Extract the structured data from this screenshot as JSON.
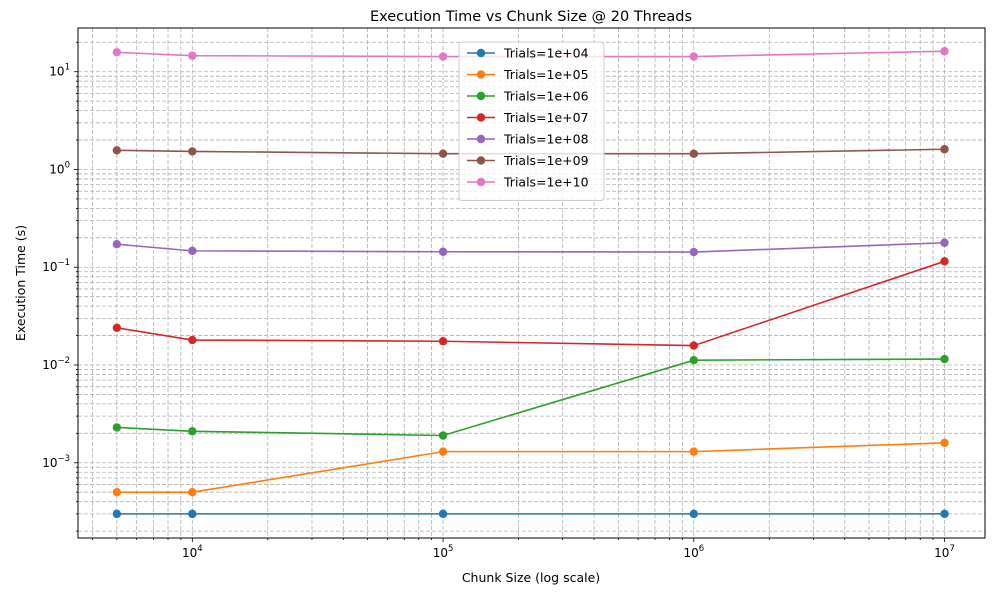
{
  "chart_data": {
    "type": "line",
    "title": "Execution Time vs Chunk Size @ 20 Threads",
    "xlabel": "Chunk Size (log scale)",
    "ylabel": "Execution Time (s)",
    "xscale": "log",
    "yscale": "log",
    "xlim": [
      3500,
      14500000
    ],
    "ylim": [
      0.00017,
      28
    ],
    "grid": "major and minor, dashed",
    "legend_position": "top-center",
    "x_ticks": [
      {
        "value": 10000,
        "base": "10",
        "exp": "4"
      },
      {
        "value": 100000,
        "base": "10",
        "exp": "5"
      },
      {
        "value": 1000000,
        "base": "10",
        "exp": "6"
      },
      {
        "value": 10000000,
        "base": "10",
        "exp": "7"
      }
    ],
    "y_ticks": [
      {
        "value": 0.001,
        "base": "10",
        "exp": "−3"
      },
      {
        "value": 0.01,
        "base": "10",
        "exp": "−2"
      },
      {
        "value": 0.1,
        "base": "10",
        "exp": "−1"
      },
      {
        "value": 1,
        "base": "10",
        "exp": "0"
      },
      {
        "value": 10,
        "base": "10",
        "exp": "1"
      }
    ],
    "x": [
      5000,
      10000,
      100000,
      1000000,
      10000000
    ],
    "series": [
      {
        "name": "Trials=1e+04",
        "color": "#1f77b4",
        "values": [
          0.0003,
          0.0003,
          0.0003,
          0.0003,
          0.0003
        ]
      },
      {
        "name": "Trials=1e+05",
        "color": "#ff7f0e",
        "values": [
          0.0005,
          0.0005,
          0.0013,
          0.0013,
          0.0016
        ]
      },
      {
        "name": "Trials=1e+06",
        "color": "#2ca02c",
        "values": [
          0.0023,
          0.0021,
          0.0019,
          0.0112,
          0.0115
        ]
      },
      {
        "name": "Trials=1e+07",
        "color": "#d62728",
        "values": [
          0.024,
          0.018,
          0.0175,
          0.0158,
          0.115
        ]
      },
      {
        "name": "Trials=1e+08",
        "color": "#9467bd",
        "values": [
          0.172,
          0.147,
          0.144,
          0.143,
          0.178
        ]
      },
      {
        "name": "Trials=1e+09",
        "color": "#8c564b",
        "values": [
          1.57,
          1.53,
          1.45,
          1.45,
          1.61
        ]
      },
      {
        "name": "Trials=1e+10",
        "color": "#e377c2",
        "values": [
          15.8,
          14.6,
          14.3,
          14.3,
          16.2
        ]
      }
    ]
  }
}
